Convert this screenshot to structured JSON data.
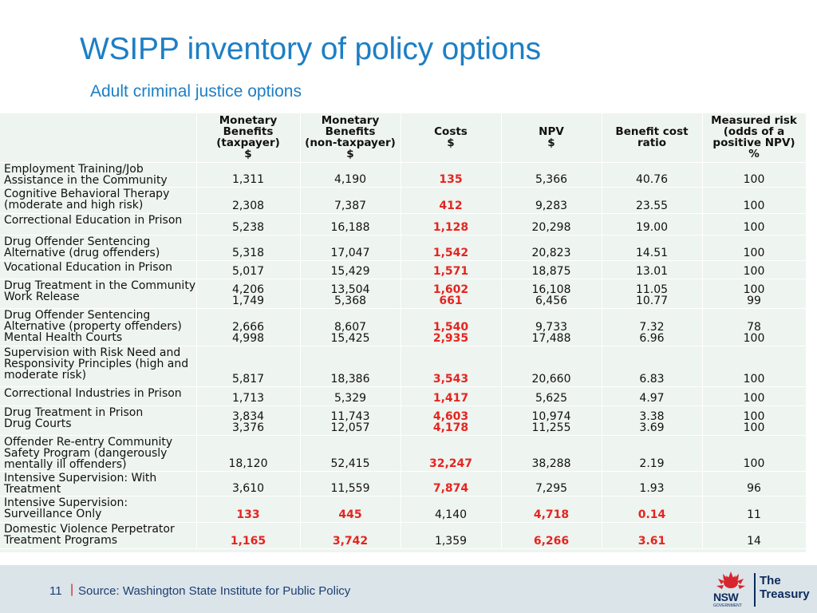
{
  "title": "WSIPP inventory of policy options",
  "subtitle": "Adult criminal justice options",
  "table": {
    "headers": [
      "",
      "Monetary\nBenefits\n(taxpayer)\n$",
      "Monetary\nBenefits\n(non-taxpayer)\n$",
      "Costs\n$",
      "NPV\n$",
      "Benefit cost\nratio",
      "Measured risk\n(odds of a\npositive NPV)\n%"
    ],
    "rows": [
      {
        "name": "Employment Training/Job\nAssistance in the Community",
        "h": 31,
        "cells": [
          "1,311",
          "4,190",
          "135",
          "5,366",
          "40.76",
          "100"
        ],
        "red": [
          2
        ]
      },
      {
        "name": "Cognitive Behavioral Therapy\n(moderate and high risk)",
        "h": 33,
        "cells": [
          "2,308",
          "7,387",
          "412",
          "9,283",
          "23.55",
          "100"
        ],
        "red": [
          2
        ]
      },
      {
        "name": "Correctional Education in Prison",
        "h": 27,
        "cells": [
          "5,238",
          "16,188",
          "1,128",
          "20,298",
          "19.00",
          "100"
        ],
        "red": [
          2
        ]
      },
      {
        "name": "Drug Offender Sentencing\nAlternative (drug offenders)",
        "h": 32,
        "cells": [
          "5,318",
          "17,047",
          "1,542",
          "20,823",
          "14.51",
          "100"
        ],
        "red": [
          2
        ]
      },
      {
        "name": "Vocational Education in Prison",
        "h": 23,
        "cells": [
          "5,017",
          "15,429",
          "1,571",
          "18,875",
          "13.01",
          "100"
        ],
        "red": [
          2
        ]
      },
      {
        "name": "Drug Treatment in the Community\nWork Release",
        "h": 37,
        "cells": [
          "4,206\n1,749",
          "13,504\n5,368",
          "1,602\n661",
          "16,108\n6,456",
          "11.05\n10.77",
          "100\n99"
        ],
        "red": [
          2
        ]
      },
      {
        "name": "Drug Offender Sentencing\nAlternative (property offenders)\nMental Health Courts",
        "h": 47,
        "cells": [
          "2,666\n4,998",
          "8,607\n15,425",
          "1,540\n2,935",
          "9,733\n17,488",
          "7.32\n6.96",
          "78\n100"
        ],
        "red": [
          2
        ]
      },
      {
        "name": "Supervision with Risk Need and\nResponsivity Principles (high and\nmoderate risk)",
        "h": 51,
        "cells": [
          "5,817",
          "18,386",
          "3,543",
          "20,660",
          "6.83",
          "100"
        ],
        "red": [
          2
        ]
      },
      {
        "name": "Correctional Industries in Prison",
        "h": 24,
        "cells": [
          "1,713",
          "5,329",
          "1,417",
          "5,625",
          "4.97",
          "100"
        ],
        "red": [
          2
        ]
      },
      {
        "name": "Drug Treatment in Prison\nDrug Courts",
        "h": 37,
        "cells": [
          "3,834\n3,376",
          "11,743\n12,057",
          "4,603\n4,178",
          "10,974\n11,255",
          "3.38\n3.69",
          "100\n100"
        ],
        "red": [
          2
        ]
      },
      {
        "name": "Offender Re-entry Community\nSafety Program (dangerously\nmentally ill offenders)",
        "h": 45,
        "cells": [
          "18,120",
          "52,415",
          "32,247",
          "38,288",
          "2.19",
          "100"
        ],
        "red": [
          2
        ]
      },
      {
        "name": "Intensive Supervision: With\nTreatment",
        "h": 30,
        "cells": [
          "3,610",
          "11,559",
          "7,874",
          "7,295",
          "1.93",
          "96"
        ],
        "red": [
          2
        ]
      },
      {
        "name": "Intensive Supervision:\nSurveillance Only",
        "h": 33,
        "cells": [
          "133",
          "445",
          "4,140",
          "4,718",
          "0.14",
          "11"
        ],
        "red": [
          0,
          1,
          3,
          4
        ]
      },
      {
        "name": "Domestic Violence Perpetrator\nTreatment Programs",
        "h": 33,
        "cells": [
          "1,165",
          "3,742",
          "1,359",
          "6,266",
          "3.61",
          "14"
        ],
        "red": [
          0,
          1,
          3,
          4
        ]
      }
    ]
  },
  "footer": {
    "page_number": "11",
    "separator": "|",
    "source": "Source: Washington State Institute for Public Policy",
    "logo_text_1": "The",
    "logo_text_2": "Treasury",
    "logo_nsw": "NSW",
    "logo_gov": "GOVERNMENT"
  },
  "colors": {
    "title": "#1d7fc4",
    "table_bg": "#eef4ef",
    "negative_red": "#e52421",
    "footer_bg": "#dbe4e9",
    "logo_navy": "#0c2a5c"
  }
}
